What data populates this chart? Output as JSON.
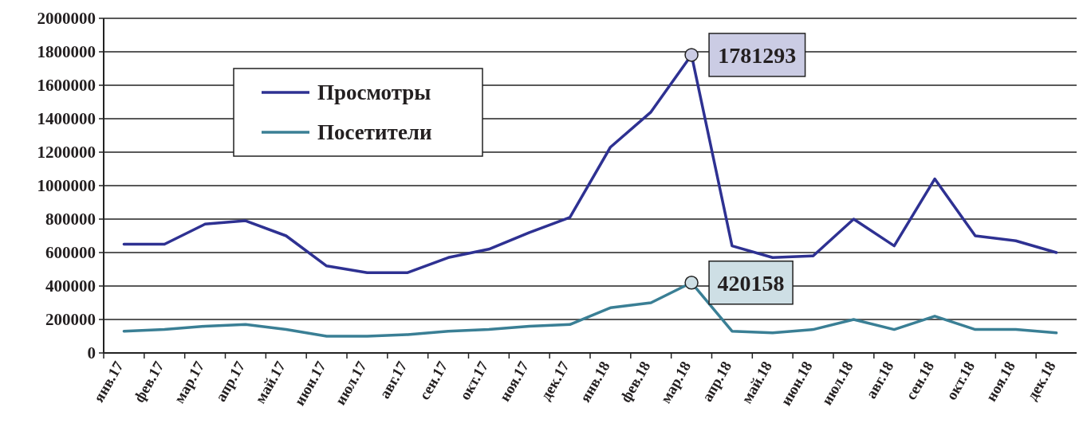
{
  "chart_data": {
    "type": "line",
    "categories": [
      "янв.17",
      "фев.17",
      "мар.17",
      "апр.17",
      "май.17",
      "июн.17",
      "июл.17",
      "авг.17",
      "сен.17",
      "окт.17",
      "ноя.17",
      "дек.17",
      "янв.18",
      "фев.18",
      "мар.18",
      "апр.18",
      "май.18",
      "июн.18",
      "июл.18",
      "авг.18",
      "сен.18",
      "окт.18",
      "ноя.18",
      "дек.18"
    ],
    "series": [
      {
        "name": "Просмотры",
        "color": "#2e3192",
        "values": [
          650000,
          650000,
          770000,
          790000,
          700000,
          520000,
          480000,
          480000,
          570000,
          620000,
          720000,
          810000,
          1230000,
          1440000,
          1781293,
          640000,
          570000,
          580000,
          800000,
          640000,
          1040000,
          700000,
          670000,
          600000
        ],
        "value_labels": [
          null,
          null,
          null,
          null,
          null,
          null,
          null,
          null,
          null,
          null,
          null,
          null,
          null,
          null,
          "1781293",
          null,
          null,
          null,
          null,
          null,
          null,
          null,
          null,
          null
        ]
      },
      {
        "name": "Посетители",
        "color": "#3a7f95",
        "values": [
          130000,
          140000,
          160000,
          170000,
          140000,
          100000,
          100000,
          110000,
          130000,
          140000,
          160000,
          170000,
          270000,
          300000,
          420158,
          130000,
          120000,
          140000,
          200000,
          140000,
          220000,
          140000,
          140000,
          120000
        ],
        "value_labels": [
          null,
          null,
          null,
          null,
          null,
          null,
          null,
          null,
          null,
          null,
          null,
          null,
          null,
          null,
          "420158",
          null,
          null,
          null,
          null,
          null,
          null,
          null,
          null,
          null
        ]
      }
    ],
    "ylim": [
      0,
      2000000
    ],
    "yticks": [
      0,
      200000,
      400000,
      600000,
      800000,
      1000000,
      1200000,
      1400000,
      1600000,
      1800000,
      2000000
    ],
    "grid": "y",
    "legend": "top left",
    "marker": "none",
    "line_style": "solid"
  }
}
